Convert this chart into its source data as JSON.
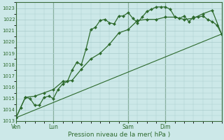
{
  "background_color": "#cce8e8",
  "grid_color": "#aacccc",
  "line_color": "#2d6a2d",
  "marker_color": "#2d6a2d",
  "ylabel_values": [
    1013,
    1014,
    1015,
    1016,
    1017,
    1018,
    1019,
    1020,
    1021,
    1022,
    1023
  ],
  "ylim": [
    1013,
    1023.5
  ],
  "xlabel": "Pression niveau de la mer( hPa )",
  "day_labels": [
    "Ven",
    "Lun",
    "Sam",
    "Dim"
  ],
  "day_positions": [
    0,
    48,
    144,
    192
  ],
  "total_hours": 264,
  "series1": [
    [
      0,
      1013.3
    ],
    [
      6,
      1014.2
    ],
    [
      12,
      1015.1
    ],
    [
      18,
      1015.0
    ],
    [
      24,
      1014.4
    ],
    [
      30,
      1014.4
    ],
    [
      36,
      1015.1
    ],
    [
      42,
      1015.2
    ],
    [
      48,
      1015.0
    ],
    [
      54,
      1015.8
    ],
    [
      60,
      1016.3
    ],
    [
      66,
      1016.5
    ],
    [
      72,
      1017.5
    ],
    [
      78,
      1018.2
    ],
    [
      84,
      1018.0
    ],
    [
      90,
      1019.4
    ],
    [
      96,
      1021.1
    ],
    [
      102,
      1021.3
    ],
    [
      108,
      1021.9
    ],
    [
      114,
      1022.0
    ],
    [
      120,
      1021.7
    ],
    [
      126,
      1021.6
    ],
    [
      132,
      1022.3
    ],
    [
      138,
      1022.3
    ],
    [
      144,
      1022.6
    ],
    [
      150,
      1022.1
    ],
    [
      156,
      1021.7
    ],
    [
      162,
      1022.2
    ],
    [
      168,
      1022.7
    ],
    [
      174,
      1022.9
    ],
    [
      180,
      1023.1
    ],
    [
      186,
      1023.1
    ],
    [
      192,
      1023.1
    ],
    [
      198,
      1022.9
    ],
    [
      204,
      1022.2
    ],
    [
      210,
      1022.1
    ],
    [
      216,
      1022.3
    ],
    [
      222,
      1021.8
    ],
    [
      228,
      1022.2
    ],
    [
      234,
      1022.2
    ],
    [
      240,
      1022.3
    ],
    [
      246,
      1022.0
    ],
    [
      252,
      1021.8
    ],
    [
      258,
      1021.5
    ],
    [
      264,
      1020.7
    ]
  ],
  "series2": [
    [
      0,
      1013.3
    ],
    [
      12,
      1015.1
    ],
    [
      24,
      1015.2
    ],
    [
      36,
      1015.5
    ],
    [
      48,
      1015.8
    ],
    [
      60,
      1016.5
    ],
    [
      72,
      1016.6
    ],
    [
      84,
      1017.6
    ],
    [
      96,
      1018.5
    ],
    [
      108,
      1019.0
    ],
    [
      120,
      1019.8
    ],
    [
      132,
      1020.8
    ],
    [
      144,
      1021.1
    ],
    [
      156,
      1021.9
    ],
    [
      168,
      1022.0
    ],
    [
      180,
      1022.0
    ],
    [
      192,
      1022.2
    ],
    [
      204,
      1022.2
    ],
    [
      216,
      1022.0
    ],
    [
      228,
      1022.1
    ],
    [
      240,
      1022.5
    ],
    [
      252,
      1022.8
    ],
    [
      264,
      1020.7
    ]
  ],
  "series3": [
    [
      0,
      1013.3
    ],
    [
      264,
      1020.7
    ]
  ]
}
